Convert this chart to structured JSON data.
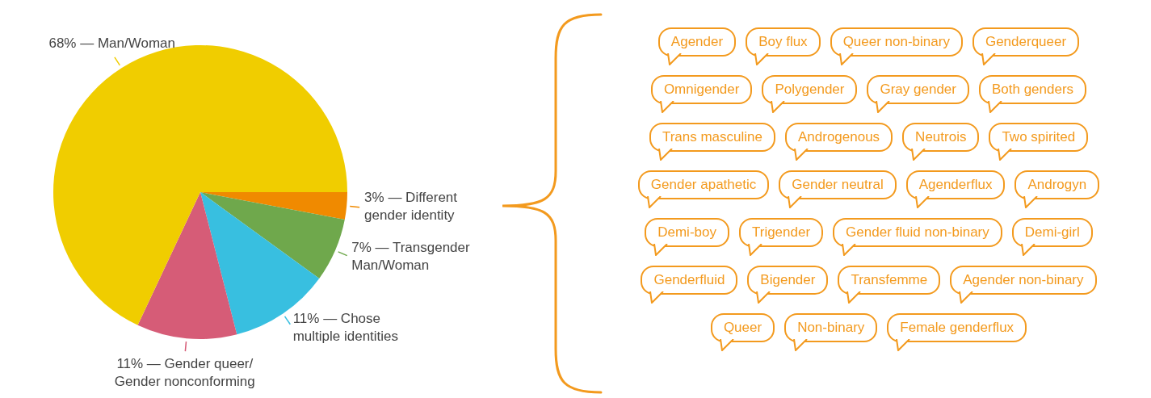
{
  "chart_data": {
    "type": "pie",
    "categories": [
      "3% — Different gender identity",
      "7% — Transgender Man/Woman",
      "11% — Chose multiple identities",
      "11% — Gender queer/ Gender nonconforming",
      "68% — Man/Woman"
    ],
    "values": [
      3,
      7,
      11,
      11,
      68
    ],
    "colors": [
      "#f08a00",
      "#6fa84c",
      "#38bfe0",
      "#d65c77",
      "#f0cd00"
    ],
    "legend": false,
    "annotations": [
      "Agender",
      "Boy flux",
      "Queer non-binary",
      "Genderqueer",
      "Omnigender",
      "Polygender",
      "Gray gender",
      "Both genders",
      "Trans masculine",
      "Androgenous",
      "Neutrois",
      "Two spirited",
      "Gender apathetic",
      "Gender neutral",
      "Agenderflux",
      "Androgyn",
      "Demi-boy",
      "Trigender",
      "Gender fluid non-binary",
      "Demi-girl",
      "Genderfluid",
      "Bigender",
      "Transfemme",
      "Agender non-binary",
      "Queer",
      "Non-binary",
      "Female genderflux"
    ]
  }
}
